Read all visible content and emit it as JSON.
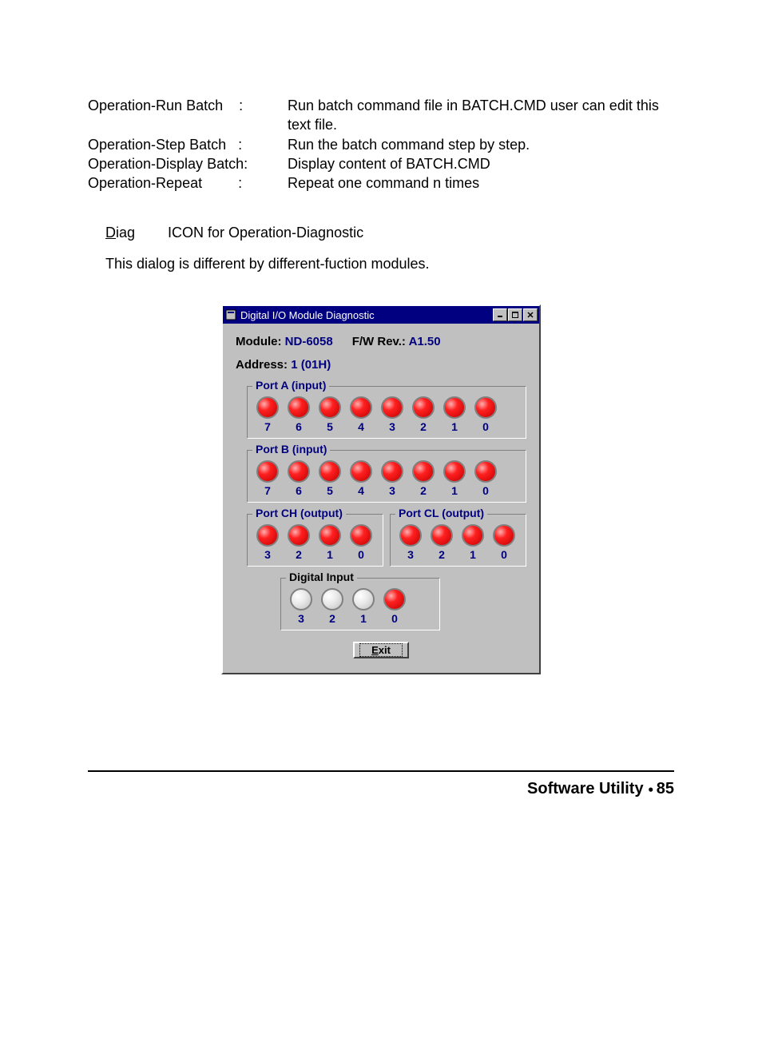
{
  "ops": {
    "rows": [
      {
        "label": "Operation-Run Batch",
        "sep": ":",
        "desc": "Run batch command file in BATCH.CMD user can edit this text file."
      },
      {
        "label": "Operation-Step Batch",
        "sep": ":",
        "desc": "Run the batch command step by step."
      },
      {
        "label": "Operation-Display Batch:",
        "sep": "",
        "desc": "Display content of BATCH.CMD"
      },
      {
        "label": "Operation-Repeat",
        "sep": ":",
        "desc": "Repeat one command n times"
      }
    ]
  },
  "diag": {
    "label": "Diag",
    "text": "ICON for Operation-Diagnostic"
  },
  "dialog_note": "This dialog is different by different-fuction modules.",
  "window": {
    "title": "Digital I/O Module Diagnostic",
    "module_label": "Module:",
    "module_value": "ND-6058",
    "fw_label": "F/W Rev.:",
    "fw_value": "A1.50",
    "address_label": "Address:",
    "address_value": "1 (01H)",
    "port_a": {
      "title": "Port A (input)",
      "bits": [
        {
          "n": "7",
          "on": true
        },
        {
          "n": "6",
          "on": true
        },
        {
          "n": "5",
          "on": true
        },
        {
          "n": "4",
          "on": true
        },
        {
          "n": "3",
          "on": true
        },
        {
          "n": "2",
          "on": true
        },
        {
          "n": "1",
          "on": true
        },
        {
          "n": "0",
          "on": true
        }
      ]
    },
    "port_b": {
      "title": "Port B (input)",
      "bits": [
        {
          "n": "7",
          "on": true
        },
        {
          "n": "6",
          "on": true
        },
        {
          "n": "5",
          "on": true
        },
        {
          "n": "4",
          "on": true
        },
        {
          "n": "3",
          "on": true
        },
        {
          "n": "2",
          "on": true
        },
        {
          "n": "1",
          "on": true
        },
        {
          "n": "0",
          "on": true
        }
      ]
    },
    "port_ch": {
      "title": "Port CH (output)",
      "bits": [
        {
          "n": "3",
          "on": true
        },
        {
          "n": "2",
          "on": true
        },
        {
          "n": "1",
          "on": true
        },
        {
          "n": "0",
          "on": true
        }
      ]
    },
    "port_cl": {
      "title": "Port CL (output)",
      "bits": [
        {
          "n": "3",
          "on": true
        },
        {
          "n": "2",
          "on": true
        },
        {
          "n": "1",
          "on": true
        },
        {
          "n": "0",
          "on": true
        }
      ]
    },
    "digital_input": {
      "title": "Digital Input",
      "title_color": "#000000",
      "bits": [
        {
          "n": "3",
          "on": false
        },
        {
          "n": "2",
          "on": false
        },
        {
          "n": "1",
          "on": false
        },
        {
          "n": "0",
          "on": true
        }
      ]
    },
    "exit_label": "Exit"
  },
  "footer": {
    "label": "Software Utility",
    "page": "85"
  },
  "colors": {
    "titlebar_bg": "#000080",
    "panel_bg": "#c0c0c0",
    "legend_color": "#000080",
    "led_on": "#e02020",
    "led_off": "#e8e8e8"
  }
}
